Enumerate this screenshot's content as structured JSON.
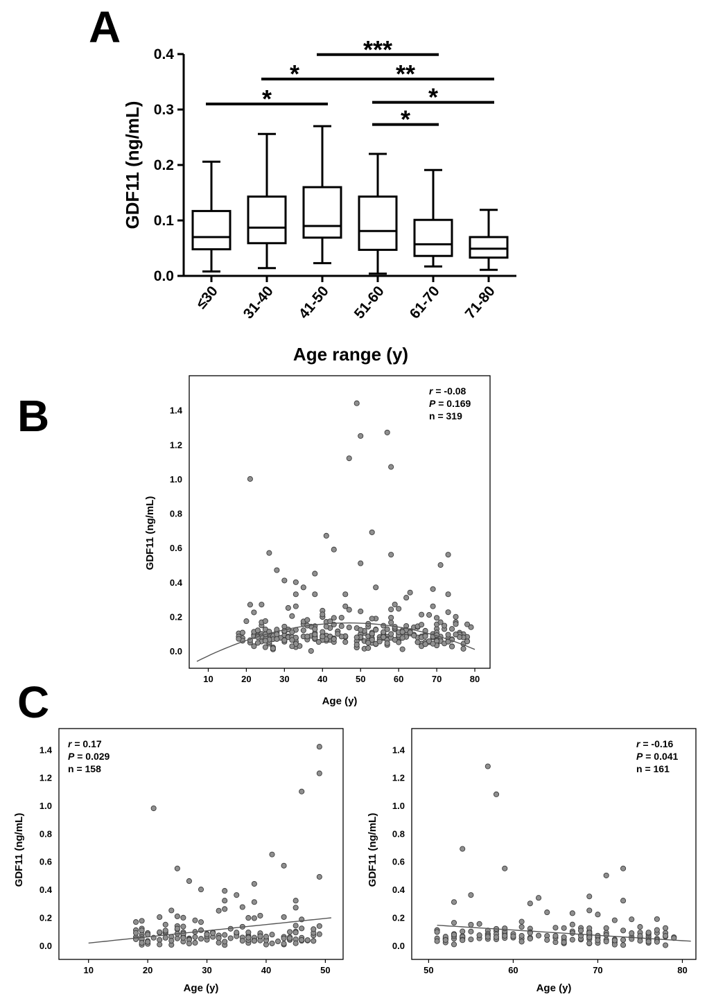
{
  "chart_data": [
    {
      "id": "A",
      "panel_label": "A",
      "type": "box",
      "ylabel": "GDF11 (ng/mL)",
      "xlabel": "Age range (y)",
      "ylim": [
        0,
        0.4
      ],
      "yticks": [
        "0.0",
        "0.1",
        "0.2",
        "0.3",
        "0.4"
      ],
      "categories": [
        "≤30",
        "31-40",
        "41-50",
        "51-60",
        "61-70",
        "71-80"
      ],
      "boxes": [
        {
          "min": 0.008,
          "q1": 0.048,
          "median": 0.07,
          "q3": 0.117,
          "max": 0.206
        },
        {
          "min": 0.014,
          "q1": 0.059,
          "median": 0.087,
          "q3": 0.143,
          "max": 0.256
        },
        {
          "min": 0.023,
          "q1": 0.069,
          "median": 0.09,
          "q3": 0.16,
          "max": 0.27
        },
        {
          "min": 0.004,
          "q1": 0.047,
          "median": 0.081,
          "q3": 0.143,
          "max": 0.22
        },
        {
          "min": 0.017,
          "q1": 0.036,
          "median": 0.057,
          "q3": 0.101,
          "max": 0.191
        },
        {
          "min": 0.011,
          "q1": 0.033,
          "median": 0.049,
          "q3": 0.07,
          "max": 0.119
        }
      ],
      "significance": [
        {
          "from": "≤30",
          "to": "41-50",
          "label": "*",
          "y": 0.31
        },
        {
          "from": "31-40",
          "to": "41-50",
          "label": "*",
          "y": 0.355
        },
        {
          "from": "41-50",
          "to": "61-70",
          "label": "***",
          "y": 0.399
        },
        {
          "from": "41-50",
          "to": "71-80",
          "label": "**",
          "y": 0.355
        },
        {
          "from": "51-60",
          "to": "71-80",
          "label": "*",
          "y": 0.313
        },
        {
          "from": "51-60",
          "to": "61-70",
          "label": "*",
          "y": 0.273
        }
      ]
    },
    {
      "id": "B",
      "panel_label": "B",
      "type": "scatter",
      "xlabel": "Age (y)",
      "ylabel": "GDF11 (ng/mL)",
      "xlim": [
        5,
        84
      ],
      "ylim": [
        -0.1,
        1.6
      ],
      "xticks": [
        10,
        20,
        30,
        40,
        50,
        60,
        70,
        80
      ],
      "yticks": [
        "0.0",
        "0.2",
        "0.4",
        "0.6",
        "0.8",
        "1.0",
        "1.2",
        "1.4"
      ],
      "stats": {
        "r_label": "r",
        "r_value": " = -0.08",
        "p_label": "P",
        "p_value": " = 0.169",
        "n": "n = 319"
      },
      "fit": {
        "type": "quadratic",
        "x_range": [
          7,
          80
        ],
        "coef": [
          -0.1455,
          0.01317,
          -0.0001404
        ]
      },
      "highlights": [
        [
          21,
          1.0
        ],
        [
          49,
          1.44
        ],
        [
          50,
          1.25
        ],
        [
          57,
          1.27
        ],
        [
          47,
          1.12
        ],
        [
          58,
          1.07
        ],
        [
          41,
          0.67
        ],
        [
          53,
          0.69
        ],
        [
          26,
          0.57
        ],
        [
          43,
          0.59
        ],
        [
          58,
          0.56
        ],
        [
          73,
          0.56
        ],
        [
          50,
          0.51
        ],
        [
          71,
          0.5
        ],
        [
          28,
          0.47
        ],
        [
          38,
          0.45
        ],
        [
          30,
          0.41
        ],
        [
          33,
          0.4
        ],
        [
          35,
          0.37
        ],
        [
          54,
          0.37
        ],
        [
          69,
          0.36
        ],
        [
          33,
          0.33
        ],
        [
          38,
          0.33
        ],
        [
          46,
          0.33
        ],
        [
          62,
          0.31
        ],
        [
          63,
          0.34
        ],
        [
          73,
          0.33
        ],
        [
          24,
          0.27
        ],
        [
          33,
          0.26
        ],
        [
          46,
          0.26
        ],
        [
          69,
          0.26
        ],
        [
          47,
          0.24
        ]
      ],
      "cluster": {
        "seed": 11,
        "count": 287,
        "x_range": [
          18,
          79
        ],
        "base": 0.08,
        "sd": 0.045
      }
    },
    {
      "id": "C1",
      "panel_label": "C",
      "type": "scatter",
      "xlabel": "Age (y)",
      "ylabel": "GDF11 (ng/mL)",
      "xlim": [
        5,
        53
      ],
      "ylim": [
        -0.1,
        1.55
      ],
      "xticks": [
        10,
        20,
        30,
        40,
        50
      ],
      "yticks": [
        "0.0",
        "0.2",
        "0.4",
        "0.6",
        "0.8",
        "1.0",
        "1.2",
        "1.4"
      ],
      "stats": {
        "r_label": "r",
        "r_value": " = 0.17",
        "p_label": "P",
        "p_value": " = 0.029",
        "n": "n = 158"
      },
      "fit": {
        "type": "linear",
        "x_range": [
          10,
          51
        ],
        "coef": [
          -0.027,
          0.0044
        ]
      },
      "highlights": [
        [
          21,
          0.98
        ],
        [
          49,
          1.42
        ],
        [
          49,
          1.23
        ],
        [
          46,
          1.1
        ],
        [
          41,
          0.65
        ],
        [
          25,
          0.55
        ],
        [
          43,
          0.57
        ],
        [
          27,
          0.46
        ],
        [
          29,
          0.4
        ],
        [
          38,
          0.44
        ],
        [
          49,
          0.49
        ],
        [
          33,
          0.39
        ],
        [
          35,
          0.36
        ],
        [
          33,
          0.32
        ],
        [
          45,
          0.32
        ],
        [
          38,
          0.31
        ],
        [
          24,
          0.25
        ],
        [
          45,
          0.27
        ],
        [
          33,
          0.26
        ]
      ],
      "cluster": {
        "seed": 23,
        "count": 139,
        "x_range": [
          18,
          50
        ],
        "base": 0.06,
        "sd": 0.04
      }
    },
    {
      "id": "C2",
      "panel_label": "",
      "type": "scatter",
      "xlabel": "Age (y)",
      "ylabel": "GDF11 (ng/mL)",
      "xlim": [
        48,
        81.6
      ],
      "ylim": [
        -0.1,
        1.55
      ],
      "xticks": [
        50,
        60,
        70,
        80
      ],
      "yticks": [
        "0.0",
        "0.2",
        "0.4",
        "0.6",
        "0.8",
        "1.0",
        "1.2",
        "1.4"
      ],
      "stats": {
        "r_label": "r",
        "r_value": " = -0.16",
        "p_label": "P",
        "p_value": " = 0.041",
        "n": "n = 161"
      },
      "fit": {
        "type": "linear",
        "x_range": [
          51,
          81
        ],
        "coef": [
          0.338,
          -0.0038
        ]
      },
      "highlights": [
        [
          57,
          1.28
        ],
        [
          58,
          1.08
        ],
        [
          54,
          0.69
        ],
        [
          59,
          0.55
        ],
        [
          73,
          0.55
        ],
        [
          71,
          0.5
        ],
        [
          55,
          0.36
        ],
        [
          63,
          0.34
        ],
        [
          69,
          0.35
        ],
        [
          62,
          0.3
        ],
        [
          73,
          0.32
        ],
        [
          53,
          0.31
        ],
        [
          69,
          0.25
        ],
        [
          72,
          0.18
        ]
      ],
      "cluster": {
        "seed": 37,
        "count": 147,
        "x_range": [
          51,
          79
        ],
        "base": 0.06,
        "sd": 0.04
      }
    }
  ]
}
